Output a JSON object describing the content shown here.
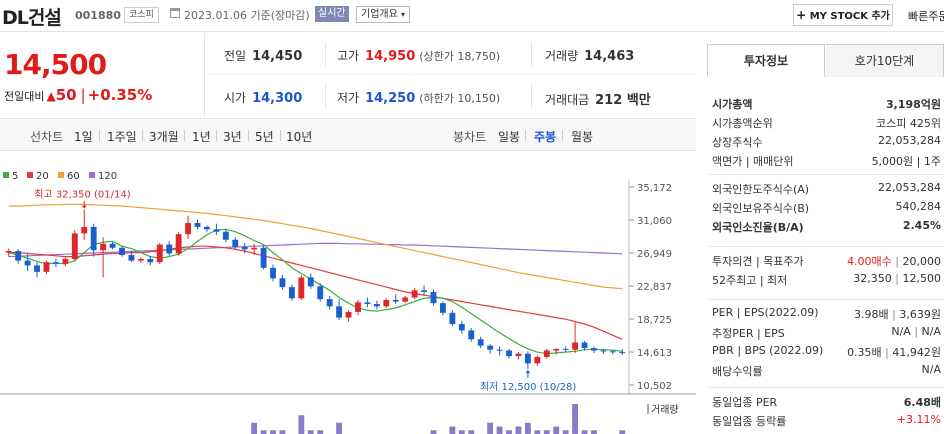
{
  "header": {
    "name": "DL건설",
    "code": "001880",
    "market": "코스피",
    "date": "2023.01.06 기준(장마감)",
    "realtime": "실시간",
    "overview": "기업개요",
    "mystock": "MY STOCK 추가",
    "quick": "빠른주문"
  },
  "price": {
    "current": "14,500",
    "change_label": "전일대비",
    "change": "50",
    "change_pct": "+0.35%"
  },
  "stats": {
    "prev_label": "전일",
    "prev": "14,450",
    "high_label": "고가",
    "high": "14,950",
    "upper_limit": "(상한가 18,750)",
    "volume_label": "거래량",
    "volume": "14,463",
    "open_label": "시가",
    "open": "14,300",
    "low_label": "저가",
    "low": "14,250",
    "lower_limit": "(하한가 10,150)",
    "amount_label": "거래대금",
    "amount": "212 백만"
  },
  "toolbar": {
    "line_chart": "선차트",
    "periods": [
      "1일",
      "1주일",
      "3개월",
      "1년",
      "3년",
      "5년",
      "10년"
    ],
    "candle_chart": "봉차트",
    "candle_periods": [
      "일봉",
      "주봉",
      "월봉"
    ],
    "candle_selected": "주봉"
  },
  "chart_data": {
    "type": "candlestick",
    "ma_legend": [
      {
        "name": "5",
        "color": "#3fae3f"
      },
      {
        "name": "20",
        "color": "#e33b3b"
      },
      {
        "name": "60",
        "color": "#f0a030"
      },
      {
        "name": "120",
        "color": "#9b6fd4"
      }
    ],
    "y_ticks": [
      35172,
      31060,
      26949,
      22837,
      18725,
      14613,
      10502
    ],
    "ylim": [
      10502,
      35172
    ],
    "max_label": "최고 32,350 (01/14)",
    "min_label": "최저 12,500 (10/28)",
    "volume_label": "거래량",
    "candles": [
      [
        27000,
        27500,
        26500,
        27200
      ],
      [
        27200,
        27400,
        25600,
        26000
      ],
      [
        26000,
        26800,
        24700,
        25400
      ],
      [
        25400,
        25800,
        23900,
        24600
      ],
      [
        24600,
        26000,
        24300,
        25800
      ],
      [
        25800,
        26200,
        25200,
        25600
      ],
      [
        25600,
        26400,
        25300,
        26200
      ],
      [
        26200,
        29800,
        25900,
        29400
      ],
      [
        29400,
        32350,
        28600,
        30200
      ],
      [
        30200,
        30600,
        26500,
        27300
      ],
      [
        27300,
        28900,
        23900,
        28100
      ],
      [
        28100,
        28300,
        27400,
        27600
      ],
      [
        27600,
        27800,
        26500,
        26700
      ],
      [
        26700,
        27200,
        25800,
        26000
      ],
      [
        26000,
        26400,
        25700,
        26200
      ],
      [
        26200,
        26600,
        25400,
        25800
      ],
      [
        25800,
        28200,
        25600,
        28000
      ],
      [
        28000,
        28400,
        26600,
        26900
      ],
      [
        26900,
        29600,
        26600,
        29300
      ],
      [
        29300,
        31600,
        28700,
        30700
      ],
      [
        30700,
        31100,
        29900,
        30200
      ],
      [
        30200,
        30400,
        29600,
        29900
      ],
      [
        29900,
        30600,
        29200,
        29600
      ],
      [
        29600,
        29900,
        28300,
        28600
      ],
      [
        28600,
        28900,
        27400,
        27700
      ],
      [
        27700,
        28200,
        26900,
        27400
      ],
      [
        27400,
        28100,
        26700,
        27600
      ],
      [
        27600,
        27900,
        24900,
        25100
      ],
      [
        25100,
        25500,
        23400,
        23800
      ],
      [
        23800,
        24200,
        22400,
        22700
      ],
      [
        22700,
        23000,
        21000,
        21300
      ],
      [
        21300,
        24200,
        21100,
        23900
      ],
      [
        23900,
        24400,
        22500,
        22800
      ],
      [
        22800,
        23200,
        20900,
        21200
      ],
      [
        21200,
        21600,
        19900,
        20300
      ],
      [
        20300,
        21200,
        18600,
        18900
      ],
      [
        18900,
        19800,
        18400,
        19600
      ],
      [
        19600,
        21100,
        19200,
        20800
      ],
      [
        20800,
        21400,
        20200,
        20600
      ],
      [
        20600,
        21000,
        19900,
        20300
      ],
      [
        20300,
        21300,
        20100,
        21100
      ],
      [
        21100,
        21800,
        20600,
        20900
      ],
      [
        20900,
        21600,
        20700,
        21400
      ],
      [
        21400,
        22600,
        21200,
        22300
      ],
      [
        22300,
        22900,
        21800,
        22100
      ],
      [
        22100,
        22400,
        20400,
        20700
      ],
      [
        20700,
        20900,
        19200,
        19500
      ],
      [
        19500,
        19800,
        17800,
        18100
      ],
      [
        18100,
        18500,
        16900,
        17300
      ],
      [
        17300,
        17600,
        15900,
        16200
      ],
      [
        16200,
        16500,
        15100,
        15400
      ],
      [
        15400,
        15600,
        14400,
        14900
      ],
      [
        14900,
        15300,
        14200,
        14800
      ],
      [
        14800,
        15000,
        13800,
        14100
      ],
      [
        14100,
        14600,
        13700,
        14400
      ],
      [
        14400,
        14700,
        12500,
        13200
      ],
      [
        13200,
        14200,
        12900,
        14000
      ],
      [
        14000,
        15000,
        13800,
        14800
      ],
      [
        14800,
        15100,
        14300,
        15000
      ],
      [
        15000,
        15300,
        14600,
        14900
      ],
      [
        14900,
        18300,
        14500,
        15800
      ],
      [
        15800,
        16000,
        14800,
        15100
      ],
      [
        15100,
        15300,
        14500,
        14800
      ],
      [
        14800,
        15000,
        14400,
        14700
      ],
      [
        14700,
        14900,
        14300,
        14600
      ],
      [
        14600,
        14950,
        14250,
        14500
      ]
    ],
    "ma5": [
      27000,
      26700,
      26300,
      25900,
      25600,
      25700,
      25600,
      26000,
      27000,
      28000,
      28300,
      28400,
      27800,
      27500,
      27000,
      26500,
      26300,
      26500,
      26800,
      27500,
      28400,
      29200,
      29800,
      29900,
      29600,
      29100,
      28500,
      28000,
      27000,
      26100,
      25100,
      24400,
      23700,
      23000,
      22300,
      21400,
      20700,
      20100,
      19800,
      19700,
      19900,
      20100,
      20500,
      20900,
      21300,
      21400,
      21300,
      20900,
      20200,
      19400,
      18600,
      17800,
      17000,
      16300,
      15600,
      15000,
      14600,
      14400,
      14500,
      14600,
      14700,
      14900,
      14950,
      14900,
      14850,
      14700
    ],
    "ma20": [
      27000,
      27000,
      26900,
      26800,
      26700,
      26600,
      26500,
      26500,
      26600,
      26700,
      26800,
      26900,
      26900,
      27000,
      27000,
      27100,
      27200,
      27400,
      27600,
      27700,
      27800,
      27800,
      27700,
      27600,
      27400,
      27200,
      26900,
      26600,
      26300,
      26000,
      25700,
      25400,
      25100,
      24800,
      24500,
      24200,
      23900,
      23600,
      23300,
      23000,
      22700,
      22400,
      22100,
      21900,
      21700,
      21500,
      21300,
      21100,
      20900,
      20700,
      20500,
      20300,
      20100,
      19900,
      19700,
      19500,
      19300,
      19100,
      18900,
      18700,
      18400,
      18100,
      17700,
      17200,
      16700,
      16200
    ],
    "ma60": [
      32800,
      32800,
      32850,
      32900,
      32950,
      32950,
      33000,
      33000,
      33000,
      32950,
      32900,
      32850,
      32800,
      32700,
      32600,
      32500,
      32400,
      32300,
      32200,
      32100,
      32000,
      31900,
      31750,
      31600,
      31450,
      31300,
      31150,
      31000,
      30800,
      30600,
      30400,
      30200,
      30000,
      29750,
      29500,
      29250,
      29000,
      28750,
      28500,
      28250,
      28000,
      27750,
      27500,
      27250,
      27000,
      26750,
      26500,
      26250,
      26000,
      25750,
      25500,
      25250,
      25000,
      24750,
      24500,
      24300,
      24100,
      23900,
      23700,
      23500,
      23300,
      23100,
      22900,
      22700,
      22600,
      22500
    ],
    "ma120": [
      26500,
      26550,
      26600,
      26650,
      26700,
      26750,
      26800,
      26850,
      26900,
      26950,
      27000,
      27050,
      27100,
      27150,
      27200,
      27250,
      27300,
      27350,
      27400,
      27450,
      27500,
      27550,
      27600,
      27650,
      27700,
      27750,
      27800,
      27850,
      27900,
      27950,
      28000,
      28050,
      28100,
      28150,
      28150,
      28150,
      28100,
      28100,
      28050,
      28050,
      28000,
      28000,
      27950,
      27950,
      27900,
      27850,
      27800,
      27750,
      27700,
      27650,
      27600,
      27550,
      27500,
      27450,
      27400,
      27350,
      27300,
      27250,
      27200,
      27150,
      27100,
      27050,
      27000,
      26950,
      26900,
      26850
    ],
    "volume": [
      0,
      0,
      0,
      0,
      0,
      0,
      0,
      0,
      0,
      0,
      0,
      0,
      0,
      0,
      0,
      0,
      0,
      0,
      0,
      0,
      0,
      0,
      0,
      0,
      0,
      0,
      3,
      1,
      1,
      1,
      0,
      5,
      1,
      1,
      0,
      3,
      0,
      0,
      0,
      0,
      0,
      0,
      0,
      0,
      0,
      1,
      0,
      2,
      1,
      1,
      0,
      3,
      2,
      1,
      2,
      3,
      1,
      1,
      2,
      1,
      8,
      1,
      1,
      0,
      0,
      1
    ]
  },
  "right_panel": {
    "tabs": [
      "투자정보",
      "호가10단계"
    ],
    "rows1": [
      {
        "k": "시가총액",
        "v": "3,198억원",
        "bold": true
      },
      {
        "k": "시가총액순위",
        "v": "코스피 425위"
      },
      {
        "k": "상장주식수",
        "v": "22,053,284"
      },
      {
        "k": "액면가 | 매매단위",
        "v": "5,000원 | 1주"
      }
    ],
    "rows2": [
      {
        "k": "외국인한도주식수(A)",
        "v": "22,053,284"
      },
      {
        "k": "외국인보유주식수(B)",
        "v": "540,284"
      },
      {
        "k": "외국인소진율(B/A)",
        "v": "2.45%",
        "bold": true
      }
    ],
    "rows3": [
      {
        "k": "투자의견 | 목표주가",
        "v1": "4.00매수",
        "v2": "20,000"
      },
      {
        "k": "52주최고 | 최저",
        "v1": "32,350",
        "v2": "12,500"
      }
    ],
    "rows4": [
      {
        "k": "PER | EPS(2022.09)",
        "v1": "3.98배",
        "v2": "3,639원"
      },
      {
        "k": "추정PER | EPS",
        "v1": "N/A",
        "v2": "N/A"
      },
      {
        "k": "PBR | BPS (2022.09)",
        "v1": "0.35배",
        "v2": "41,942원"
      },
      {
        "k": "배당수익률",
        "v1": "",
        "v2": "N/A"
      }
    ],
    "rows5": [
      {
        "k": "동일업종 PER",
        "v": "6.48배"
      },
      {
        "k": "동일업종 등락률",
        "v": "+3.11%"
      }
    ]
  }
}
